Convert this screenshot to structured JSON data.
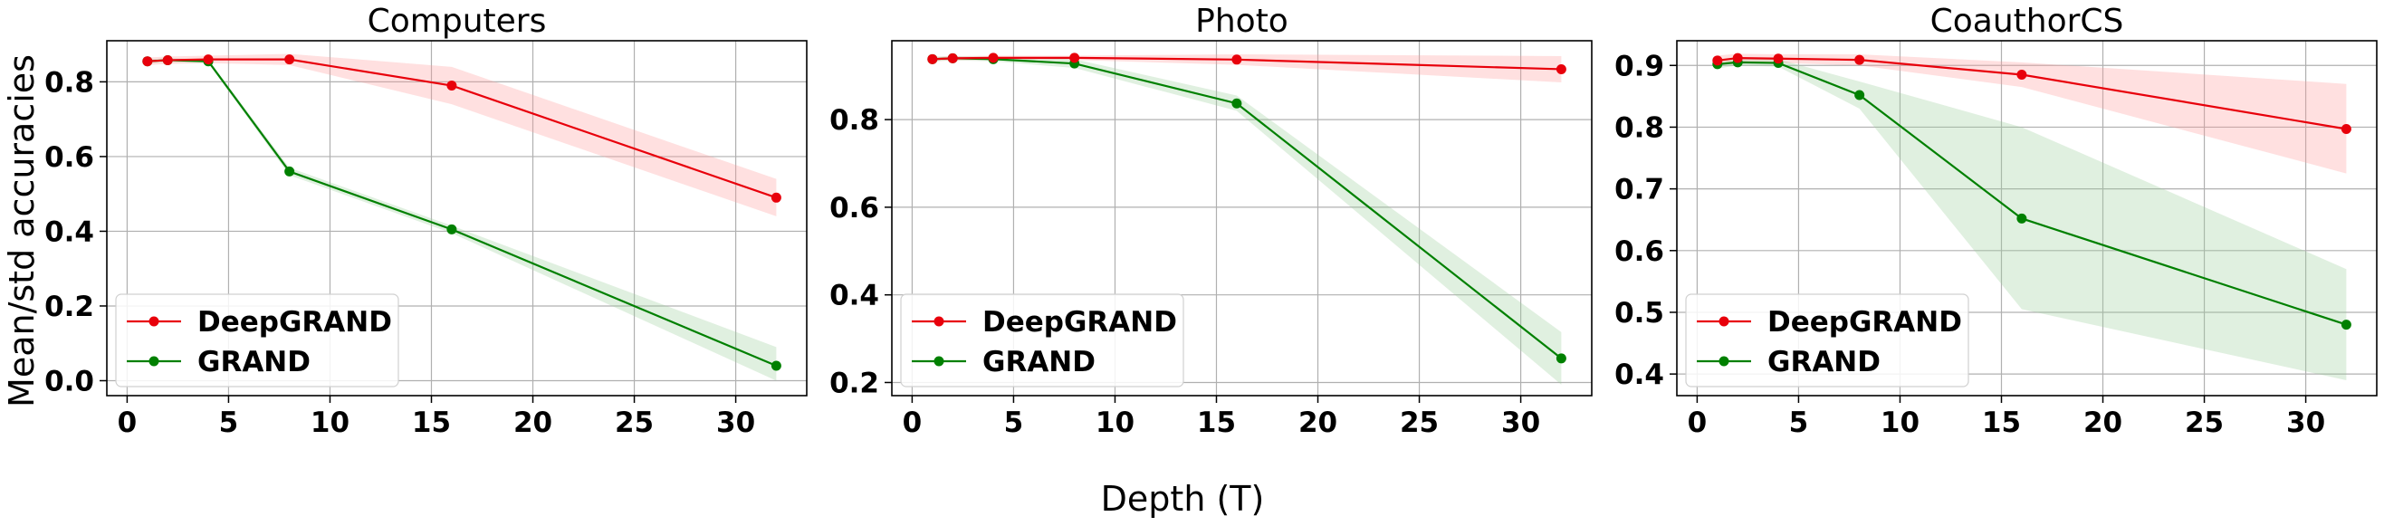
{
  "figure": {
    "xlabel": "Depth (T)",
    "ylabel": "Mean/std accuracies"
  },
  "colors": {
    "DeepGRAND": "#e8000b",
    "GRAND": "#008000",
    "DeepGRAND_band": "#ff9999",
    "GRAND_band": "#99cc99",
    "grid": "#b0b0b0"
  },
  "chart_data": [
    {
      "type": "line",
      "title": "Computers",
      "xlim": [
        -1,
        33.5
      ],
      "ylim": [
        -0.04,
        0.91
      ],
      "xticks": [
        0,
        5,
        10,
        15,
        20,
        25,
        30
      ],
      "yticks": [
        0.0,
        0.2,
        0.4,
        0.6,
        0.8
      ],
      "ytick_labels": [
        "0.0",
        "0.2",
        "0.4",
        "0.6",
        "0.8"
      ],
      "legend": "lower-left",
      "grid": true,
      "series": [
        {
          "name": "DeepGRAND",
          "x": [
            1,
            2,
            4,
            8,
            16,
            32
          ],
          "y": [
            0.855,
            0.858,
            0.86,
            0.86,
            0.79,
            0.49
          ],
          "y_lower": [
            0.845,
            0.848,
            0.85,
            0.845,
            0.74,
            0.44
          ],
          "y_upper": [
            0.865,
            0.868,
            0.87,
            0.875,
            0.84,
            0.54
          ]
        },
        {
          "name": "GRAND",
          "x": [
            1,
            2,
            4,
            8,
            16,
            32
          ],
          "y": [
            0.855,
            0.858,
            0.855,
            0.56,
            0.405,
            0.04
          ],
          "y_lower": [
            0.85,
            0.853,
            0.85,
            0.55,
            0.395,
            0.0
          ],
          "y_upper": [
            0.86,
            0.863,
            0.86,
            0.57,
            0.415,
            0.09
          ]
        }
      ]
    },
    {
      "type": "line",
      "title": "Photo",
      "xlim": [
        -1,
        33.5
      ],
      "ylim": [
        0.17,
        0.98
      ],
      "xticks": [
        0,
        5,
        10,
        15,
        20,
        25,
        30
      ],
      "yticks": [
        0.2,
        0.4,
        0.6,
        0.8
      ],
      "ytick_labels": [
        "0.2",
        "0.4",
        "0.6",
        "0.8"
      ],
      "legend": "lower-left",
      "grid": true,
      "series": [
        {
          "name": "DeepGRAND",
          "x": [
            1,
            2,
            4,
            8,
            16,
            32
          ],
          "y": [
            0.938,
            0.94,
            0.941,
            0.941,
            0.937,
            0.915
          ],
          "y_lower": [
            0.933,
            0.935,
            0.936,
            0.936,
            0.925,
            0.885
          ],
          "y_upper": [
            0.943,
            0.945,
            0.946,
            0.946,
            0.949,
            0.945
          ]
        },
        {
          "name": "GRAND",
          "x": [
            1,
            2,
            4,
            8,
            16,
            32
          ],
          "y": [
            0.938,
            0.94,
            0.938,
            0.928,
            0.837,
            0.255
          ],
          "y_lower": [
            0.933,
            0.935,
            0.933,
            0.918,
            0.82,
            0.195
          ],
          "y_upper": [
            0.943,
            0.945,
            0.943,
            0.938,
            0.855,
            0.315
          ]
        }
      ]
    },
    {
      "type": "line",
      "title": "CoauthorCS",
      "xlim": [
        -1,
        33.5
      ],
      "ylim": [
        0.365,
        0.94
      ],
      "xticks": [
        0,
        5,
        10,
        15,
        20,
        25,
        30
      ],
      "yticks": [
        0.4,
        0.5,
        0.6,
        0.7,
        0.8,
        0.9
      ],
      "ytick_labels": [
        "0.4",
        "0.5",
        "0.6",
        "0.7",
        "0.8",
        "0.9"
      ],
      "legend": "lower-left",
      "grid": true,
      "series": [
        {
          "name": "DeepGRAND",
          "x": [
            1,
            2,
            4,
            8,
            16,
            32
          ],
          "y": [
            0.908,
            0.912,
            0.911,
            0.909,
            0.885,
            0.797
          ],
          "y_lower": [
            0.9,
            0.905,
            0.904,
            0.9,
            0.865,
            0.725
          ],
          "y_upper": [
            0.916,
            0.919,
            0.918,
            0.918,
            0.905,
            0.87
          ]
        },
        {
          "name": "GRAND",
          "x": [
            1,
            2,
            4,
            8,
            16,
            32
          ],
          "y": [
            0.902,
            0.905,
            0.904,
            0.852,
            0.652,
            0.48
          ],
          "y_lower": [
            0.895,
            0.9,
            0.898,
            0.83,
            0.505,
            0.39
          ],
          "y_upper": [
            0.909,
            0.91,
            0.91,
            0.874,
            0.8,
            0.57
          ]
        }
      ]
    }
  ]
}
